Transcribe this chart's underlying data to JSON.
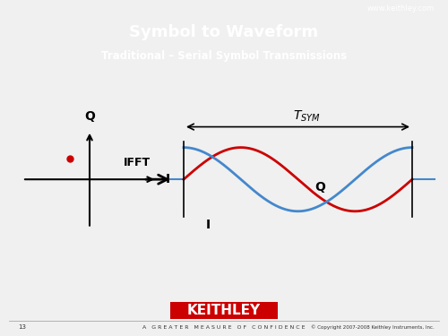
{
  "title": "Symbol to Waveform",
  "subtitle": "Traditional – Serial Symbol Transmissions",
  "title_color": "#ffffff",
  "subtitle_color": "#ffffff",
  "header_bg": "#cc0000",
  "top_bar_bg": "#1a1a1a",
  "slide_bg": "#f0f0f0",
  "body_bg": "#ffffff",
  "footer_text": "A   G R E A T E R   M E A S U R E   O F   C O N F I D E N C E",
  "footer_url": "www.keithley.com",
  "footer_copy": "© Copyright 2007-2008 Keithley Instruments, Inc.",
  "page_num": "13",
  "keithley_box_color": "#cc0000",
  "keithley_text": "KEITHLEY",
  "dot_color": "#cc0000",
  "I_wave_color": "#cc0000",
  "Q_wave_color": "#4488cc",
  "arrow_color": "#000000",
  "axis_color": "#000000"
}
